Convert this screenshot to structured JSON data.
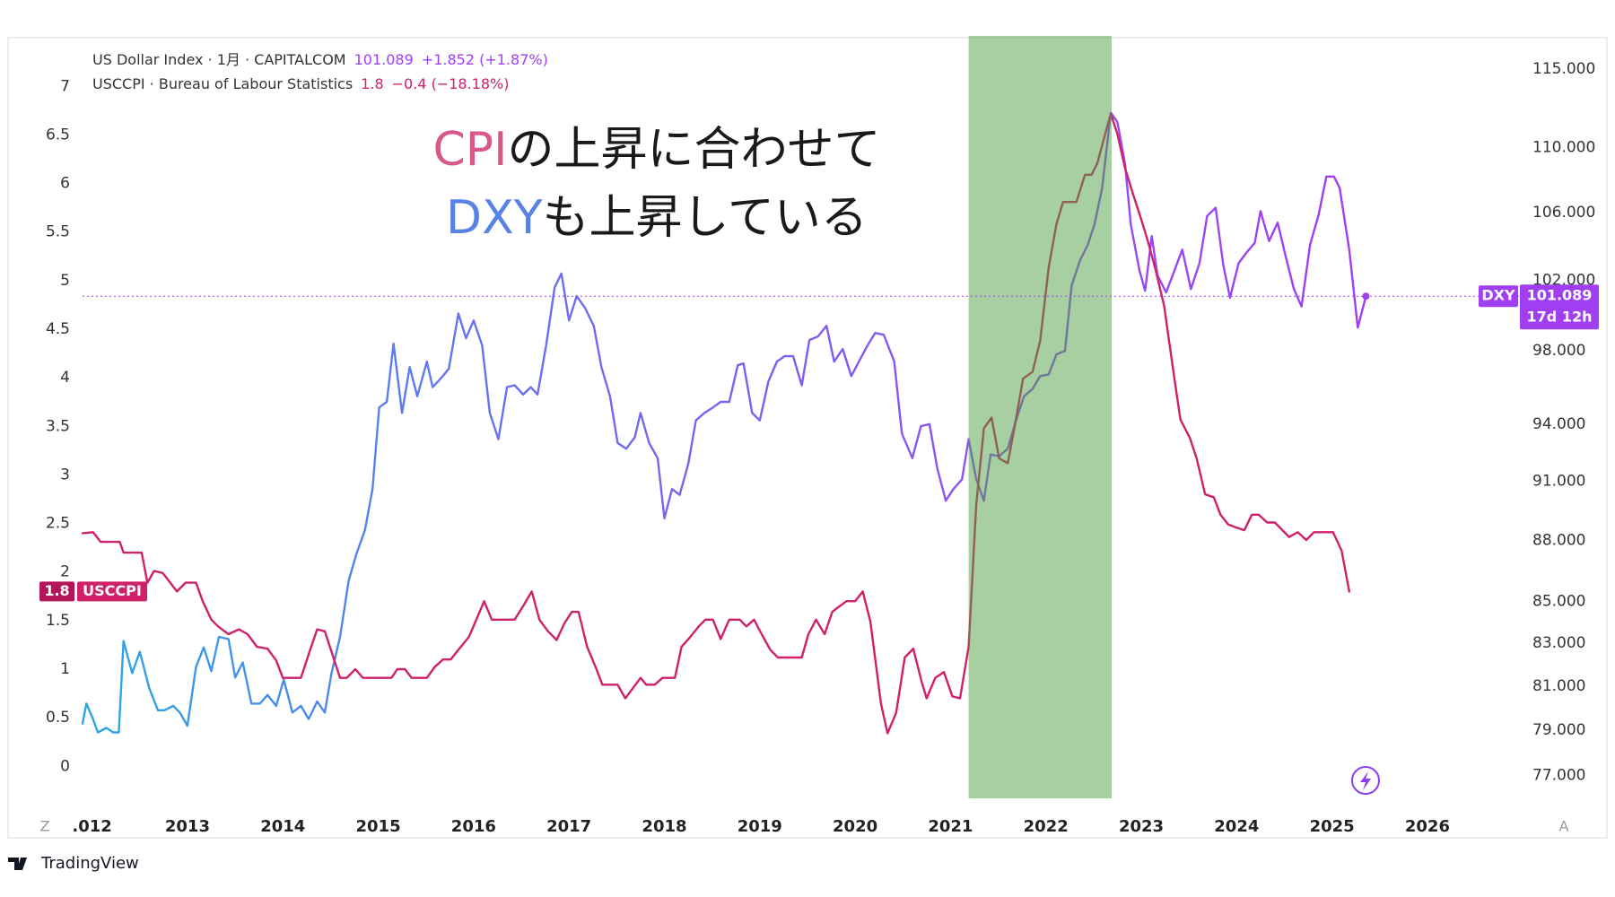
{
  "chart_data": {
    "type": "line",
    "annotation": [
      [
        {
          "text": "CPI",
          "color": "#d9588a"
        },
        {
          "text": "の上昇に合わせて"
        }
      ],
      [
        {
          "text": "DXY",
          "color": "#5a82e6"
        },
        {
          "text": "も上昇している"
        }
      ]
    ],
    "xlim": [
      2011.9,
      2026.96
    ],
    "xticks": [
      {
        "value": 2012,
        "label": ".012"
      },
      2013,
      2014,
      2015,
      2016,
      2017,
      2018,
      2019,
      2020,
      2021,
      2022,
      2023,
      2024,
      2025,
      2026
    ],
    "ylim": [
      -0.33,
      7.52
    ],
    "yticks": [
      0,
      0.5,
      1,
      1.5,
      2,
      2.5,
      3,
      3.5,
      4,
      4.5,
      5,
      5.5,
      6,
      6.5,
      7
    ],
    "y2lim": [
      76.0,
      117.2
    ],
    "y2log": true,
    "y2ticks": [
      {
        "value": 77,
        "label": "77.000"
      },
      {
        "value": 79,
        "label": "79.000"
      },
      {
        "value": 81,
        "label": "81.000"
      },
      {
        "value": 83,
        "label": "83.000"
      },
      {
        "value": 85,
        "label": "85.000"
      },
      {
        "value": 88,
        "label": "88.000"
      },
      {
        "value": 91,
        "label": "91.000"
      },
      {
        "value": 94,
        "label": "94.000"
      },
      {
        "value": 98,
        "label": "98.000"
      },
      {
        "value": 102,
        "label": "102.000"
      },
      {
        "value": 106,
        "label": "106.000"
      },
      {
        "value": 110,
        "label": "110.000"
      },
      {
        "value": 115,
        "label": "115.000"
      }
    ],
    "grid": false,
    "highlight": [
      2021.19,
      2022.69
    ],
    "highlight_color": "#50a046",
    "highlight_opacity": 0.5,
    "corner_left": "Z",
    "corner_right": "A",
    "brand": "TradingView",
    "series": [
      {
        "name": "US Dollar Index · 1月 · CAPITALCOM",
        "short_name": "DXY",
        "axis": "y2",
        "color": "#a03ff2",
        "colors": [
          "#2aa8e4",
          "#6a6ff0",
          "#8a55f0",
          "#a23df2"
        ],
        "last_label": "101.089",
        "change": "+1.852 (+1.87%)",
        "countdown": "17d 12h",
        "x": [
          2011.9,
          2011.94,
          2012.01,
          2012.06,
          2012.15,
          2012.22,
          2012.28,
          2012.33,
          2012.42,
          2012.5,
          2012.6,
          2012.69,
          2012.76,
          2012.85,
          2012.92,
          2013.0,
          2013.09,
          2013.17,
          2013.25,
          2013.33,
          2013.43,
          2013.5,
          2013.58,
          2013.67,
          2013.76,
          2013.84,
          2013.93,
          2014.01,
          2014.1,
          2014.19,
          2014.27,
          2014.36,
          2014.44,
          2014.51,
          2014.6,
          2014.69,
          2014.77,
          2014.86,
          2014.94,
          2015.01,
          2015.09,
          2015.16,
          2015.25,
          2015.33,
          2015.41,
          2015.51,
          2015.57,
          2015.66,
          2015.74,
          2015.84,
          2015.92,
          2016.0,
          2016.09,
          2016.17,
          2016.26,
          2016.35,
          2016.43,
          2016.52,
          2016.6,
          2016.67,
          2016.76,
          2016.85,
          2016.92,
          2017.0,
          2017.08,
          2017.17,
          2017.26,
          2017.34,
          2017.43,
          2017.51,
          2017.6,
          2017.69,
          2017.75,
          2017.84,
          2017.93,
          2018.0,
          2018.08,
          2018.16,
          2018.25,
          2018.33,
          2018.42,
          2018.51,
          2018.59,
          2018.68,
          2018.77,
          2018.83,
          2018.92,
          2019.0,
          2019.09,
          2019.18,
          2019.26,
          2019.35,
          2019.44,
          2019.52,
          2019.61,
          2019.7,
          2019.78,
          2019.87,
          2019.96,
          2020.04,
          2020.13,
          2020.21,
          2020.3,
          2020.41,
          2020.49,
          2020.6,
          2020.69,
          2020.78,
          2020.86,
          2020.95,
          2021.03,
          2021.12,
          2021.19,
          2021.27,
          2021.35,
          2021.42,
          2021.51,
          2021.6,
          2021.68,
          2021.77,
          2021.86,
          2021.94,
          2022.03,
          2022.11,
          2022.2,
          2022.27,
          2022.36,
          2022.44,
          2022.51,
          2022.59,
          2022.68,
          2022.75,
          2022.83,
          2022.89,
          2022.98,
          2023.04,
          2023.11,
          2023.17,
          2023.26,
          2023.35,
          2023.43,
          2023.52,
          2023.61,
          2023.69,
          2023.78,
          2023.86,
          2023.93,
          2024.02,
          2024.1,
          2024.19,
          2024.25,
          2024.34,
          2024.43,
          2024.51,
          2024.6,
          2024.68,
          2024.77,
          2024.86,
          2024.94,
          2025.02,
          2025.08,
          2025.18,
          2025.27,
          2025.355
        ],
        "values": [
          79.3,
          80.2,
          79.5,
          78.9,
          79.1,
          78.9,
          78.9,
          83.1,
          81.6,
          82.6,
          80.9,
          79.9,
          79.9,
          80.1,
          79.8,
          79.2,
          81.9,
          82.8,
          81.7,
          83.3,
          83.2,
          81.4,
          82.1,
          80.2,
          80.2,
          80.6,
          80.1,
          81.3,
          79.8,
          80.1,
          79.5,
          80.3,
          79.8,
          81.6,
          83.3,
          86.0,
          87.3,
          88.5,
          90.6,
          94.9,
          95.2,
          98.4,
          94.6,
          97.1,
          95.5,
          97.4,
          96.0,
          96.5,
          97.0,
          100.1,
          98.7,
          99.7,
          98.3,
          94.6,
          93.2,
          96.0,
          96.1,
          95.6,
          96.0,
          95.6,
          98.3,
          101.6,
          102.4,
          99.7,
          101.1,
          100.4,
          99.4,
          97.1,
          95.5,
          93.0,
          92.7,
          93.3,
          94.6,
          93.0,
          92.2,
          89.1,
          90.6,
          90.3,
          91.9,
          94.2,
          94.6,
          94.9,
          95.2,
          95.2,
          97.2,
          97.3,
          94.6,
          94.2,
          96.3,
          97.4,
          97.7,
          97.7,
          96.1,
          98.6,
          98.8,
          99.4,
          97.4,
          98.1,
          96.6,
          97.4,
          98.3,
          99.0,
          98.9,
          97.4,
          93.5,
          92.2,
          93.9,
          94.0,
          91.7,
          90.0,
          90.6,
          91.1,
          93.2,
          91.1,
          90.0,
          92.4,
          92.3,
          92.7,
          94.1,
          95.5,
          95.9,
          96.6,
          96.7,
          97.8,
          98.0,
          101.7,
          103.2,
          104.1,
          105.3,
          107.5,
          112.2,
          111.6,
          109.0,
          105.3,
          102.6,
          101.4,
          104.6,
          102.3,
          101.3,
          102.6,
          103.8,
          101.5,
          103.0,
          105.8,
          106.3,
          102.9,
          101.0,
          103.0,
          103.6,
          104.2,
          106.1,
          104.3,
          105.4,
          103.5,
          101.5,
          100.5,
          104.1,
          105.9,
          108.2,
          108.2,
          107.5,
          103.8,
          99.3,
          101.089
        ]
      },
      {
        "name": "USCCPI · Bureau of Labour Statistics",
        "short_name": "USCCPI",
        "axis": "y",
        "color": "#d0206a",
        "last_label": "1.8",
        "change": "−0.4 (−18.18%)",
        "x": [
          2011.9,
          2012.01,
          2012.09,
          2012.29,
          2012.33,
          2012.52,
          2012.58,
          2012.65,
          2012.74,
          2012.82,
          2012.89,
          2012.98,
          2013.09,
          2013.16,
          2013.25,
          2013.32,
          2013.43,
          2013.54,
          2013.63,
          2013.73,
          2013.84,
          2013.93,
          2014.0,
          2014.19,
          2014.28,
          2014.36,
          2014.44,
          2014.51,
          2014.6,
          2014.67,
          2014.76,
          2014.84,
          2015.14,
          2015.2,
          2015.28,
          2015.35,
          2015.51,
          2015.59,
          2015.68,
          2015.76,
          2015.85,
          2015.95,
          2016.02,
          2016.11,
          2016.19,
          2016.43,
          2016.52,
          2016.61,
          2016.69,
          2016.78,
          2016.87,
          2016.95,
          2017.03,
          2017.1,
          2017.19,
          2017.28,
          2017.35,
          2017.51,
          2017.59,
          2017.66,
          2017.75,
          2017.81,
          2017.9,
          2017.98,
          2018.11,
          2018.18,
          2018.27,
          2018.36,
          2018.43,
          2018.51,
          2018.59,
          2018.68,
          2018.79,
          2018.86,
          2018.94,
          2019.02,
          2019.11,
          2019.19,
          2019.44,
          2019.51,
          2019.59,
          2019.68,
          2019.76,
          2019.84,
          2019.91,
          2020.0,
          2020.08,
          2020.16,
          2020.27,
          2020.34,
          2020.43,
          2020.52,
          2020.61,
          2020.7,
          2020.75,
          2020.84,
          2020.93,
          2021.02,
          2021.1,
          2021.19,
          2021.27,
          2021.35,
          2021.43,
          2021.51,
          2021.6,
          2021.67,
          2021.76,
          2021.86,
          2021.94,
          2022.03,
          2022.11,
          2022.18,
          2022.32,
          2022.41,
          2022.48,
          2022.54,
          2022.61,
          2022.68,
          2022.75,
          2022.83,
          2022.91,
          2023.0,
          2023.08,
          2023.15,
          2023.24,
          2023.33,
          2023.41,
          2023.51,
          2023.58,
          2023.67,
          2023.76,
          2023.83,
          2023.91,
          2023.99,
          2024.08,
          2024.16,
          2024.23,
          2024.32,
          2024.4,
          2024.48,
          2024.55,
          2024.64,
          2024.73,
          2024.81,
          2024.91,
          2025.01,
          2025.1,
          2025.18
        ],
        "values": [
          2.4,
          2.41,
          2.31,
          2.31,
          2.2,
          2.2,
          1.89,
          2.01,
          1.99,
          1.89,
          1.8,
          1.89,
          1.89,
          1.7,
          1.51,
          1.44,
          1.36,
          1.41,
          1.36,
          1.23,
          1.21,
          1.09,
          0.91,
          0.91,
          1.18,
          1.41,
          1.39,
          1.18,
          0.91,
          0.91,
          1.0,
          0.91,
          0.91,
          1.0,
          1.0,
          0.91,
          0.91,
          1.02,
          1.1,
          1.1,
          1.21,
          1.33,
          1.49,
          1.7,
          1.51,
          1.51,
          1.65,
          1.8,
          1.51,
          1.39,
          1.3,
          1.47,
          1.59,
          1.59,
          1.23,
          1.02,
          0.84,
          0.84,
          0.7,
          0.79,
          0.91,
          0.84,
          0.84,
          0.91,
          0.91,
          1.23,
          1.33,
          1.44,
          1.51,
          1.51,
          1.31,
          1.51,
          1.51,
          1.44,
          1.51,
          1.36,
          1.2,
          1.12,
          1.12,
          1.36,
          1.51,
          1.36,
          1.59,
          1.65,
          1.7,
          1.7,
          1.8,
          1.49,
          0.65,
          0.34,
          0.55,
          1.12,
          1.21,
          0.86,
          0.7,
          0.91,
          0.97,
          0.72,
          0.7,
          1.23,
          2.7,
          3.48,
          3.59,
          3.17,
          3.12,
          3.48,
          3.99,
          4.06,
          4.38,
          5.14,
          5.58,
          5.81,
          5.81,
          6.09,
          6.09,
          6.21,
          6.47,
          6.72,
          6.51,
          6.16,
          5.9,
          5.63,
          5.37,
          5.11,
          4.74,
          4.11,
          3.57,
          3.38,
          3.17,
          2.8,
          2.77,
          2.59,
          2.49,
          2.46,
          2.43,
          2.59,
          2.59,
          2.51,
          2.51,
          2.43,
          2.36,
          2.41,
          2.33,
          2.41,
          2.41,
          2.41,
          2.22,
          1.8
        ]
      }
    ]
  }
}
